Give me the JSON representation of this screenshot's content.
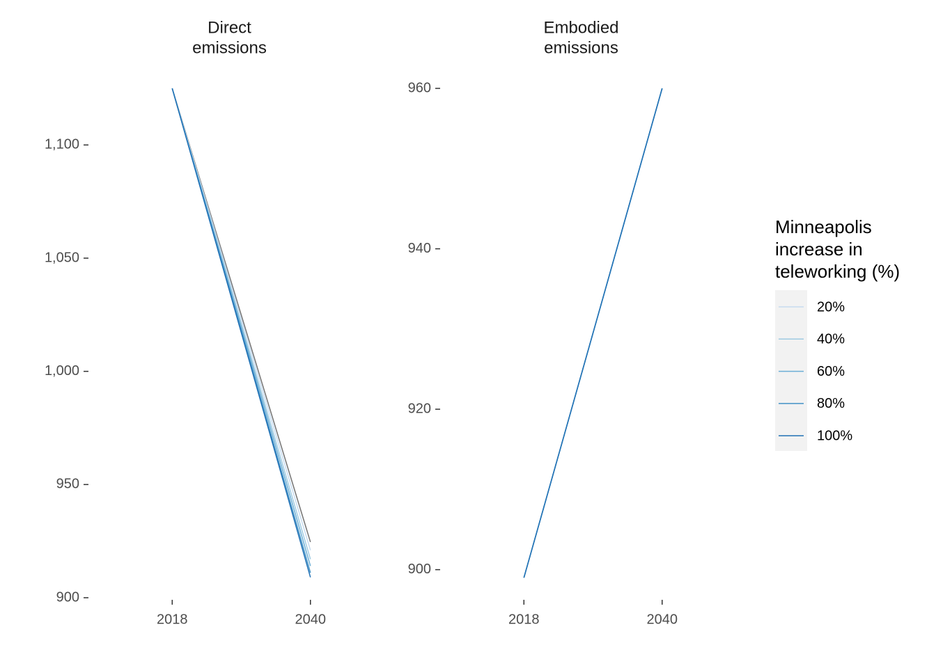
{
  "chart_data": [
    {
      "type": "line",
      "title": [
        "Direct",
        "emissions"
      ],
      "x": [
        2018,
        2040
      ],
      "xlim": [
        2005,
        2051
      ],
      "xticks": [
        2018,
        2040
      ],
      "ylim": [
        900,
        1125
      ],
      "yticks": [
        900,
        950,
        {
          "value": 1000,
          "label": "1,000"
        },
        {
          "value": 1050,
          "label": "1,050"
        },
        {
          "value": 1100,
          "label": "1,100"
        }
      ],
      "legend_title": [
        "Minneapolis",
        "increase in",
        "teleworking (%)"
      ],
      "series": [
        {
          "color": "#737373",
          "values": [
            1125,
            924.6
          ]
        },
        {
          "name": "20%",
          "color": "#c6dbef",
          "values": [
            1125,
            921
          ]
        },
        {
          "name": "40%",
          "color": "#9ecae1",
          "values": [
            1125,
            917
          ]
        },
        {
          "name": "60%",
          "color": "#6baed6",
          "values": [
            1125,
            914
          ]
        },
        {
          "name": "80%",
          "color": "#4292c6",
          "values": [
            1125,
            911
          ]
        },
        {
          "name": "100%",
          "color": "#2171b5",
          "values": [
            1125,
            909
          ]
        }
      ]
    },
    {
      "type": "line",
      "title": [
        "Embodied",
        "emissions"
      ],
      "x": [
        2018,
        2040
      ],
      "xlim": [
        2005,
        2051
      ],
      "xticks": [
        2018,
        2040
      ],
      "ylim": [
        896.5,
        960
      ],
      "yticks": [
        900,
        920,
        940,
        960
      ],
      "series": [
        {
          "color": "#737373",
          "values": [
            899,
            960
          ]
        },
        {
          "color": "#c6dbef",
          "values": [
            899,
            960
          ]
        },
        {
          "color": "#9ecae1",
          "values": [
            899,
            960
          ]
        },
        {
          "color": "#6baed6",
          "values": [
            899,
            960
          ]
        },
        {
          "color": "#4292c6",
          "values": [
            899,
            960
          ]
        },
        {
          "color": "#2171b5",
          "values": [
            899,
            960
          ]
        }
      ]
    }
  ]
}
